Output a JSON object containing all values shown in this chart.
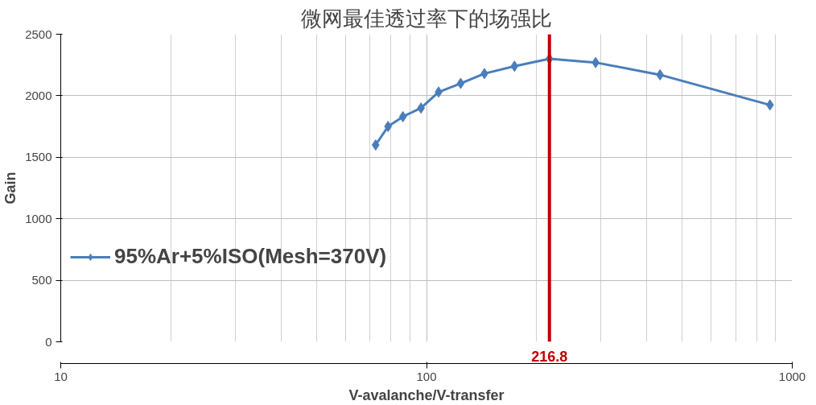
{
  "chart_data": {
    "type": "line",
    "title": "微网最佳透过率下的场强比",
    "xlabel": "V-avalanche/V-transfer",
    "ylabel": "Gain",
    "x": [
      72.6,
      78.5,
      86.2,
      96.6,
      107.9,
      124,
      144,
      174,
      216.8,
      290,
      435,
      869
    ],
    "series": [
      {
        "name": "95%Ar+5%ISO(Mesh=370V)",
        "color": "#4a7ebb",
        "values": [
          1600,
          1750,
          1830,
          1900,
          2030,
          2100,
          2180,
          2240,
          2300,
          2270,
          2170,
          1925
        ]
      }
    ],
    "xlim": [
      10,
      1000
    ],
    "xticks": [
      10,
      100,
      1000
    ],
    "ylim": [
      0,
      2500
    ],
    "yticks": [
      0,
      500,
      1000,
      1500,
      2000,
      2500
    ],
    "log": "x",
    "grid": true,
    "legend": "left",
    "marker": "diamond",
    "line_style": "solid",
    "ref_lines": [
      {
        "axis": "x",
        "value": 216.8,
        "label": "216.8",
        "color": "#c00000"
      }
    ]
  }
}
